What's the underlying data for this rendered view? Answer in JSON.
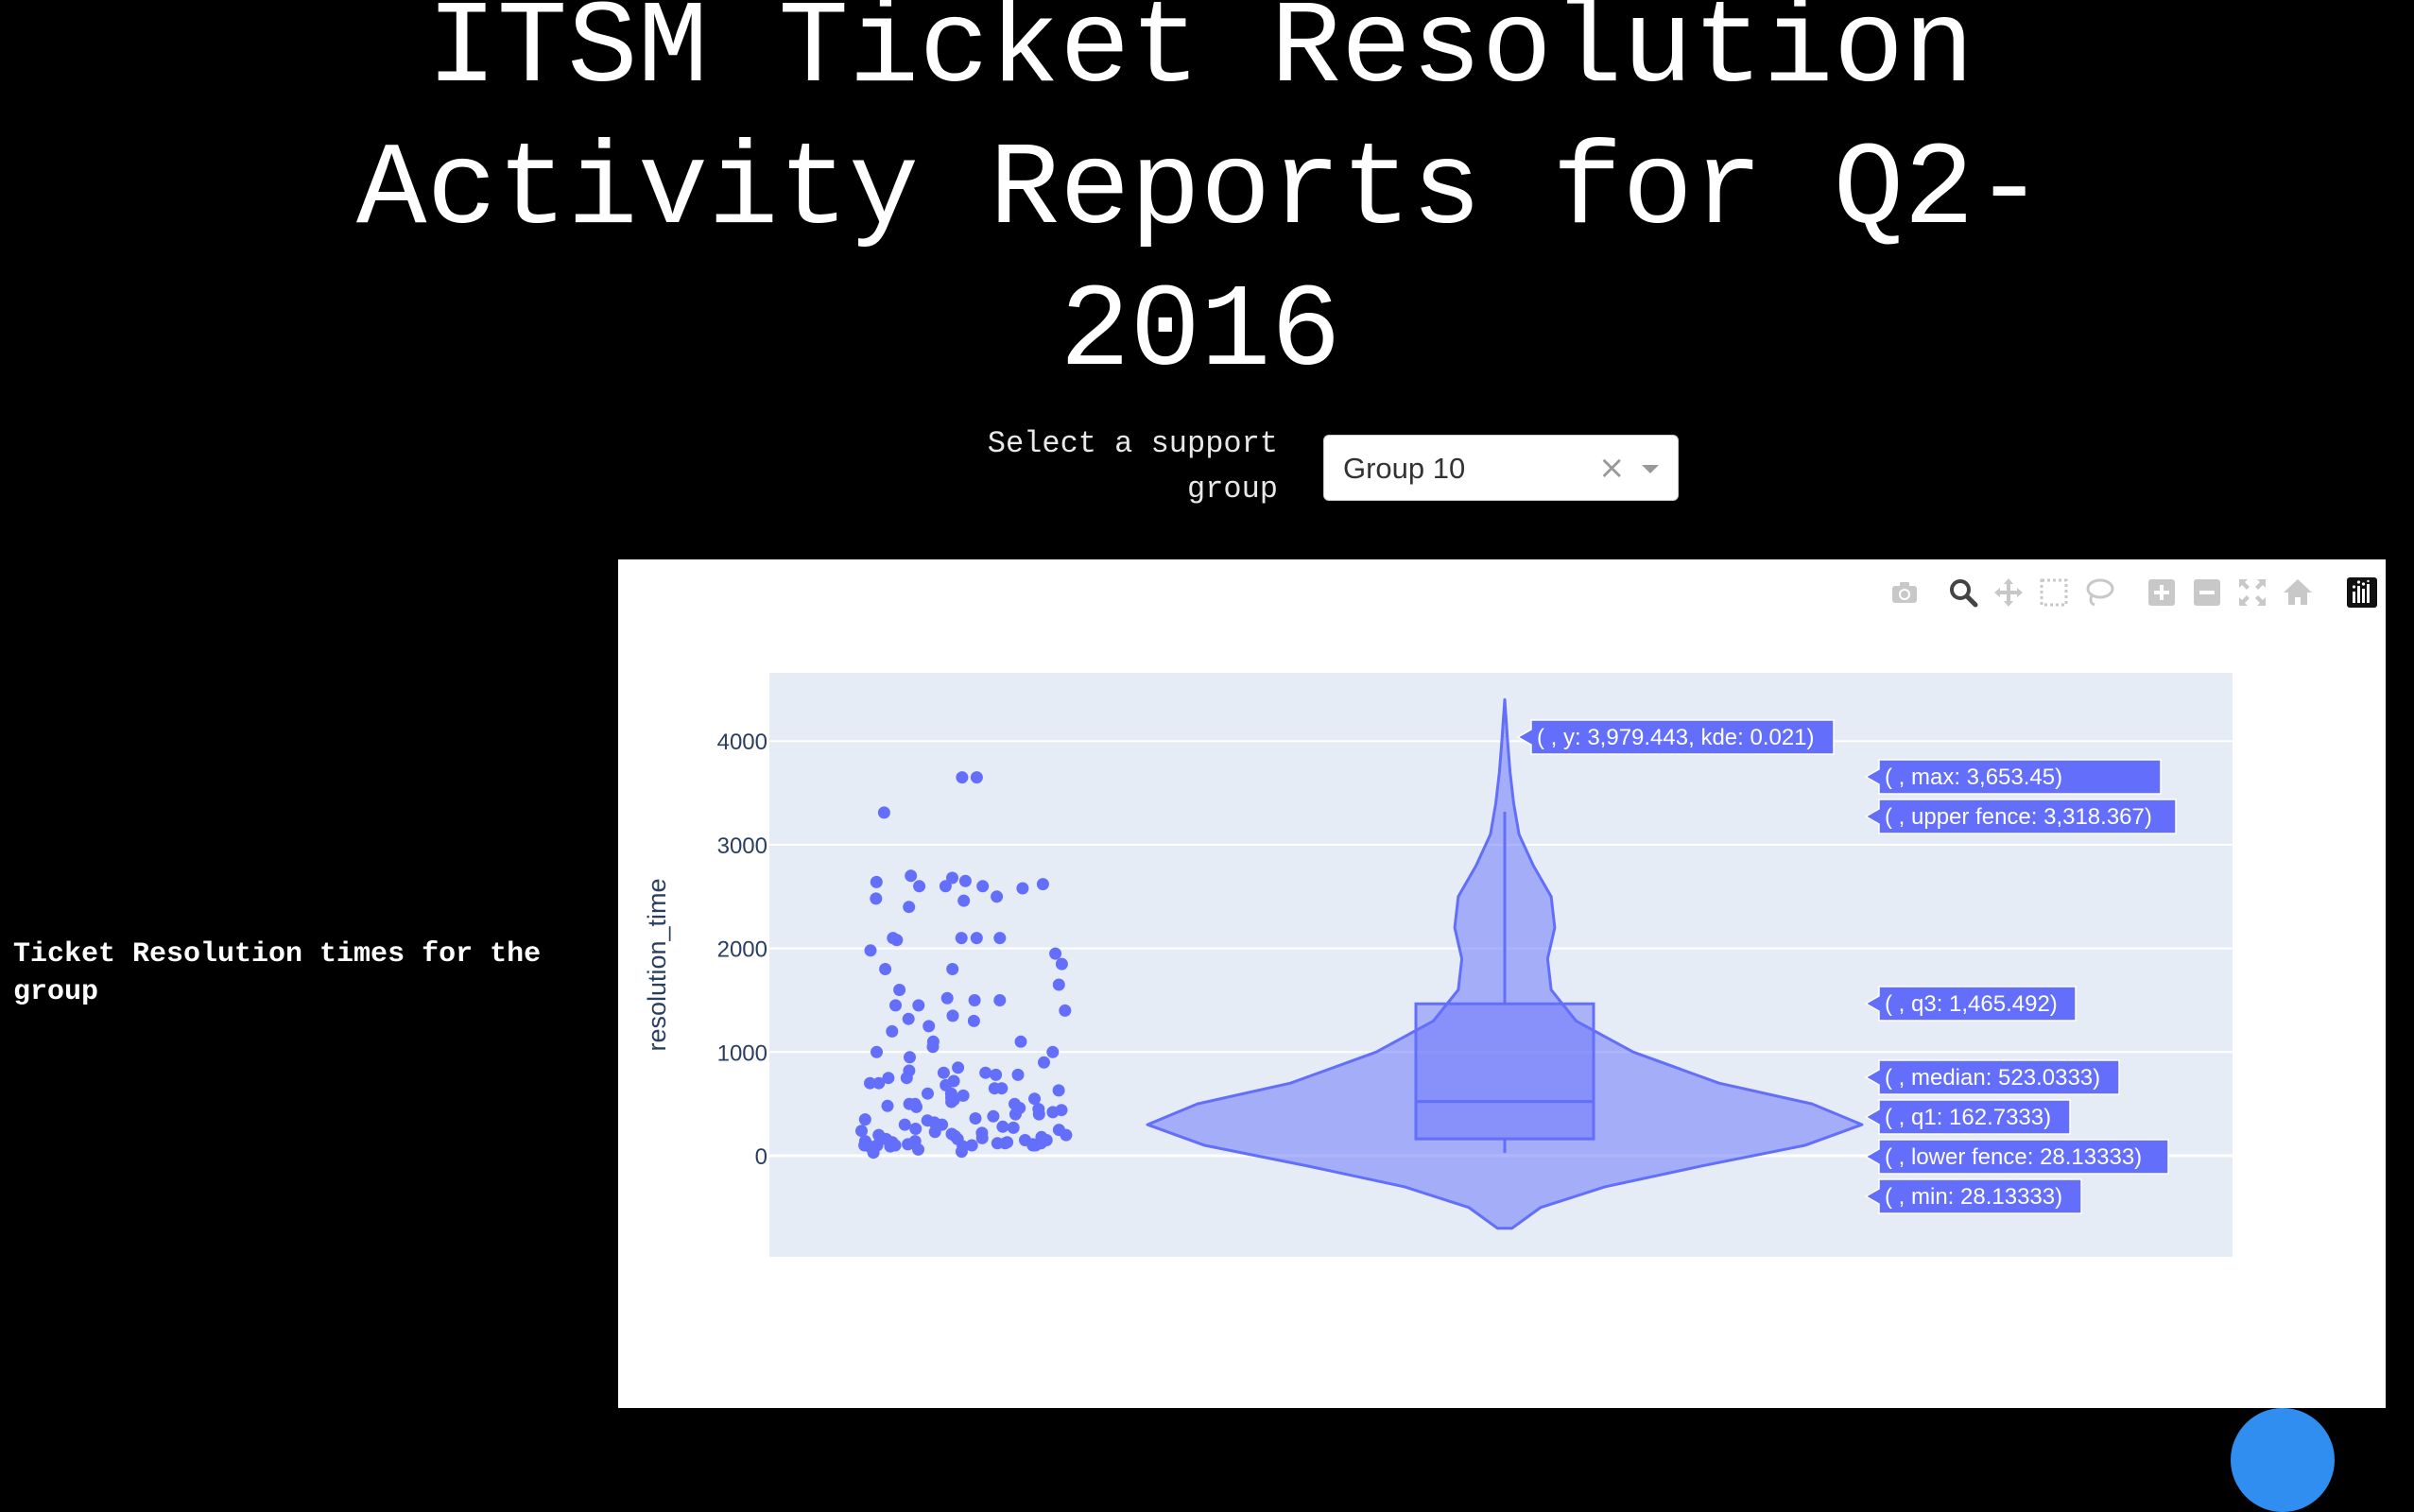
{
  "page": {
    "title": "ITSM Ticket Resolution Activity Reports for Q2-2016",
    "selector_label": "Select a support group",
    "side_label": "Ticket Resolution times for the group"
  },
  "dropdown": {
    "value": "Group 10",
    "clear_symbol": "×"
  },
  "modebar": {
    "buttons": [
      "camera-icon",
      "zoom-icon",
      "pan-icon",
      "box-select-icon",
      "lasso-icon",
      "zoom-in-icon",
      "zoom-out-icon",
      "autoscale-icon",
      "reset-axes-icon",
      "plotly-logo-icon"
    ]
  },
  "colors": {
    "accent": "#636efa",
    "plot_bg": "#e5ecf6",
    "grid": "#ffffff"
  },
  "chart_data": {
    "type": "violin",
    "ylabel": "resolution_time",
    "ylim": [
      -700,
      4500
    ],
    "yticks": [
      0,
      1000,
      2000,
      3000,
      4000
    ],
    "y_tick_labels": [
      "0",
      "1000",
      "2000",
      "3000",
      "4000"
    ],
    "grid": true,
    "box": {
      "min": 28.13333,
      "lower_fence": 28.13333,
      "q1": 162.7333,
      "median": 523.0333,
      "q3": 1465.492,
      "upper_fence": 3318.367,
      "max": 3653.45
    },
    "kde_peak": {
      "y": 3979.443,
      "kde": 0.021
    },
    "violin_span": [
      -700,
      4400
    ],
    "violin_width": [
      [
        -700,
        0.02
      ],
      [
        -500,
        0.1
      ],
      [
        -300,
        0.28
      ],
      [
        -100,
        0.55
      ],
      [
        100,
        0.84
      ],
      [
        300,
        1.0
      ],
      [
        500,
        0.86
      ],
      [
        700,
        0.6
      ],
      [
        1000,
        0.36
      ],
      [
        1300,
        0.2
      ],
      [
        1600,
        0.13
      ],
      [
        1900,
        0.12
      ],
      [
        2200,
        0.14
      ],
      [
        2500,
        0.13
      ],
      [
        2800,
        0.08
      ],
      [
        3100,
        0.04
      ],
      [
        3400,
        0.025
      ],
      [
        3700,
        0.015
      ],
      [
        4000,
        0.008
      ],
      [
        4200,
        0.004
      ],
      [
        4400,
        0
      ]
    ],
    "points": [
      3650,
      3650,
      3310,
      2700,
      2680,
      2650,
      2640,
      2620,
      2600,
      2600,
      2600,
      2580,
      2500,
      2480,
      2460,
      2400,
      2100,
      2100,
      2100,
      2100,
      2080,
      1980,
      1950,
      1850,
      1800,
      1800,
      1650,
      1600,
      1520,
      1500,
      1500,
      1450,
      1450,
      1400,
      1350,
      1320,
      1300,
      1250,
      1200,
      1100,
      1100,
      1050,
      1000,
      1000,
      950,
      900,
      850,
      820,
      800,
      800,
      780,
      780,
      750,
      750,
      720,
      700,
      700,
      680,
      650,
      650,
      630,
      600,
      600,
      580,
      560,
      550,
      540,
      520,
      500,
      500,
      500,
      480,
      470,
      460,
      450,
      440,
      420,
      400,
      400,
      380,
      360,
      350,
      340,
      320,
      300,
      300,
      280,
      270,
      260,
      250,
      240,
      230,
      220,
      210,
      200,
      200,
      190,
      180,
      170,
      160,
      160,
      150,
      150,
      140,
      140,
      130,
      130,
      120,
      120,
      120,
      110,
      110,
      100,
      100,
      100,
      100,
      100,
      100,
      100,
      90,
      90,
      80,
      60,
      40,
      30
    ],
    "hover_labels": [
      "( , y: 3,979.443, kde: 0.021)",
      "( , max: 3,653.45)",
      "( , upper fence: 3,318.367)",
      "( , q3: 1,465.492)",
      "( , median: 523.0333)",
      "( , q1: 162.7333)",
      "( , lower fence: 28.13333)",
      "( , min: 28.13333)"
    ]
  }
}
